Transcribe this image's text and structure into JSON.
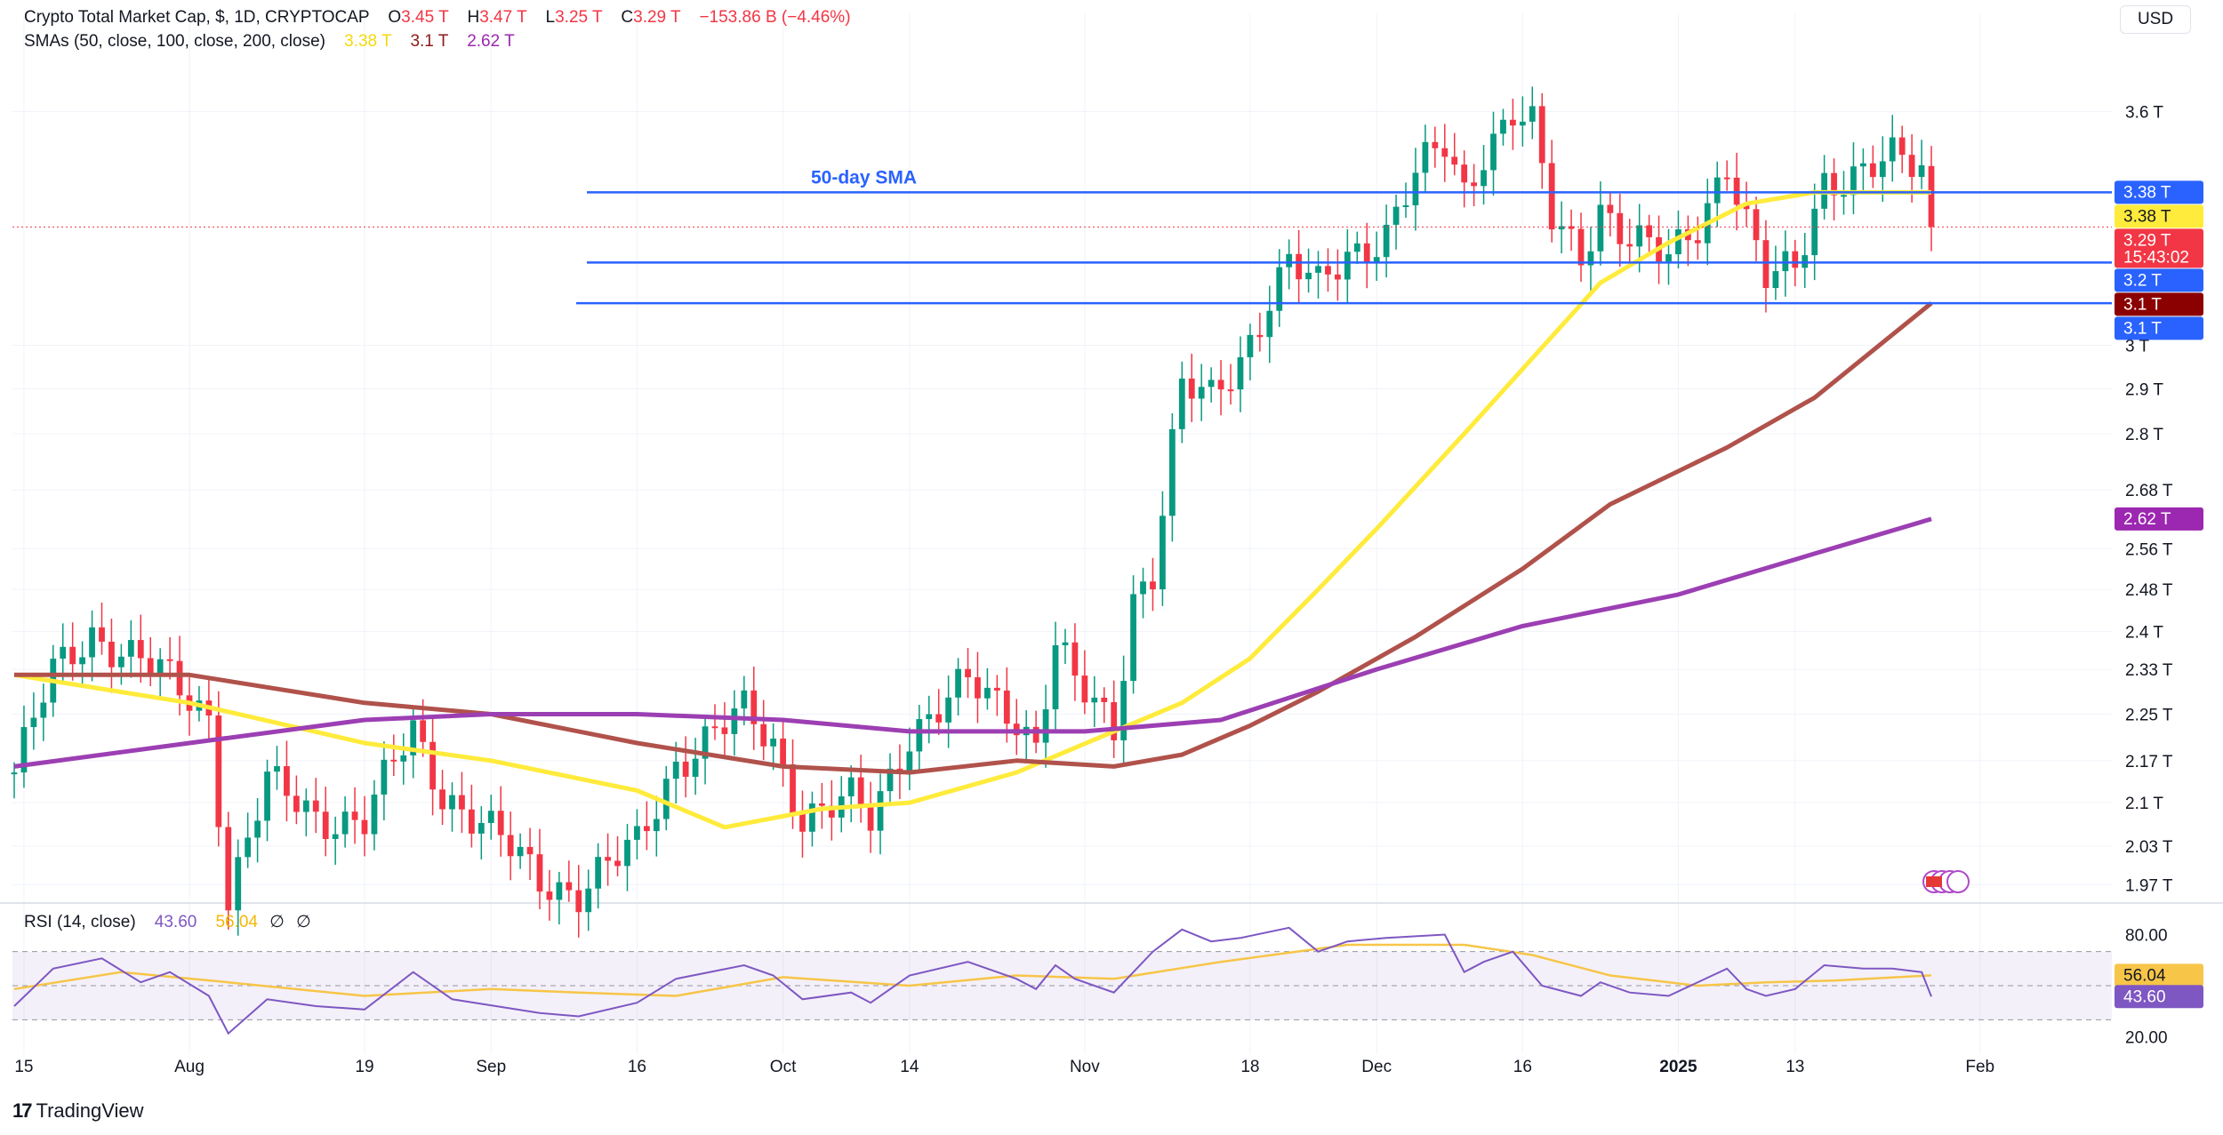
{
  "header": {
    "title": "Crypto Total Market Cap, $, 1D, CRYPTOCAP",
    "ohlc": [
      {
        "k": "O",
        "v": "3.45 T"
      },
      {
        "k": "H",
        "v": "3.47 T"
      },
      {
        "k": "L",
        "v": "3.25 T"
      },
      {
        "k": "C",
        "v": "3.29 T"
      }
    ],
    "change": "−153.86 B (−4.46%)",
    "sma_label": "SMAs (50, close, 100, close, 200, close)",
    "sma_values": [
      "3.38 T",
      "3.1 T",
      "2.62 T"
    ]
  },
  "currency_button": "USD",
  "watermark": "TradingView",
  "colors": {
    "up": "#089981",
    "down": "#f23645",
    "sma50": "#ffeb3b",
    "sma100": "#b0524b",
    "sma200": "#9c3fb3",
    "hline": "#2962ff",
    "rsi": "#7e57c2",
    "rsi_ma": "#f7c548"
  },
  "chart_data": [
    {
      "type": "candlestick",
      "title": "Crypto Total Market Cap, $, 1D, CRYPTOCAP",
      "y_scale": "log",
      "ylim": [
        1.95,
        3.78
      ],
      "y_ticks": [
        "3.6 T",
        "3 T",
        "2.9 T",
        "2.8 T",
        "2.68 T",
        "2.56 T",
        "2.48 T",
        "2.4 T",
        "2.33 T",
        "2.25 T",
        "2.17 T",
        "2.1 T",
        "2.03 T",
        "1.97 T"
      ],
      "x_ticks": [
        "15",
        "Aug",
        "19",
        "Sep",
        "16",
        "Oct",
        "14",
        "Nov",
        "18",
        "Dec",
        "16",
        "2025",
        "13",
        "Feb"
      ],
      "x_tick_dates": [
        "2024-07-15",
        "2024-08-01",
        "2024-08-19",
        "2024-09-01",
        "2024-09-16",
        "2024-10-01",
        "2024-10-14",
        "2024-11-01",
        "2024-11-18",
        "2024-12-01",
        "2024-12-16",
        "2025-01-01",
        "2025-01-13",
        "2025-02-01"
      ],
      "date_range": [
        "2024-07-14",
        "2025-01-27"
      ],
      "candle_close_path": [
        [
          "2024-07-14",
          2.15
        ],
        [
          "2024-07-18",
          2.32
        ],
        [
          "2024-07-22",
          2.4
        ],
        [
          "2024-07-29",
          2.32
        ],
        [
          "2024-08-03",
          2.25
        ],
        [
          "2024-08-05",
          1.95
        ],
        [
          "2024-08-09",
          2.13
        ],
        [
          "2024-08-14",
          2.08
        ],
        [
          "2024-08-19",
          2.07
        ],
        [
          "2024-08-24",
          2.22
        ],
        [
          "2024-08-27",
          2.12
        ],
        [
          "2024-09-06",
          1.98
        ],
        [
          "2024-09-10",
          1.96
        ],
        [
          "2024-09-16",
          2.03
        ],
        [
          "2024-09-20",
          2.17
        ],
        [
          "2024-09-27",
          2.25
        ],
        [
          "2024-09-30",
          2.2
        ],
        [
          "2024-10-03",
          2.08
        ],
        [
          "2024-10-08",
          2.1
        ],
        [
          "2024-10-10",
          2.07
        ],
        [
          "2024-10-14",
          2.22
        ],
        [
          "2024-10-20",
          2.3
        ],
        [
          "2024-10-25",
          2.25
        ],
        [
          "2024-10-27",
          2.2
        ],
        [
          "2024-10-29",
          2.38
        ],
        [
          "2024-10-31",
          2.3
        ],
        [
          "2024-11-04",
          2.22
        ],
        [
          "2024-11-06",
          2.47
        ],
        [
          "2024-11-08",
          2.52
        ],
        [
          "2024-11-11",
          2.9
        ],
        [
          "2024-11-14",
          2.87
        ],
        [
          "2024-11-17",
          2.97
        ],
        [
          "2024-11-20",
          3.12
        ],
        [
          "2024-11-22",
          3.2
        ],
        [
          "2024-11-25",
          3.13
        ],
        [
          "2024-11-28",
          3.22
        ],
        [
          "2024-12-02",
          3.28
        ],
        [
          "2024-12-05",
          3.42
        ],
        [
          "2024-12-08",
          3.5
        ],
        [
          "2024-12-10",
          3.38
        ],
        [
          "2024-12-12",
          3.5
        ],
        [
          "2024-12-15",
          3.6
        ],
        [
          "2024-12-17",
          3.55
        ],
        [
          "2024-12-19",
          3.3
        ],
        [
          "2024-12-22",
          3.22
        ],
        [
          "2024-12-24",
          3.35
        ],
        [
          "2024-12-27",
          3.26
        ],
        [
          "2024-12-31",
          3.2
        ],
        [
          "2025-01-03",
          3.3
        ],
        [
          "2025-01-06",
          3.47
        ],
        [
          "2025-01-08",
          3.3
        ],
        [
          "2025-01-10",
          3.15
        ],
        [
          "2025-01-13",
          3.18
        ],
        [
          "2025-01-16",
          3.42
        ],
        [
          "2025-01-20",
          3.43
        ],
        [
          "2025-01-23",
          3.46
        ],
        [
          "2025-01-26",
          3.45
        ],
        [
          "2025-01-27",
          3.29
        ]
      ],
      "series": [
        {
          "name": "SMA 50",
          "last": 3.38,
          "values": [
            [
              "2024-07-14",
              2.32
            ],
            [
              "2024-08-01",
              2.27
            ],
            [
              "2024-08-19",
              2.2
            ],
            [
              "2024-09-01",
              2.17
            ],
            [
              "2024-09-16",
              2.12
            ],
            [
              "2024-09-25",
              2.06
            ],
            [
              "2024-10-05",
              2.09
            ],
            [
              "2024-10-14",
              2.1
            ],
            [
              "2024-10-25",
              2.15
            ],
            [
              "2024-11-04",
              2.22
            ],
            [
              "2024-11-11",
              2.27
            ],
            [
              "2024-11-18",
              2.35
            ],
            [
              "2024-11-25",
              2.48
            ],
            [
              "2024-12-01",
              2.6
            ],
            [
              "2024-12-10",
              2.8
            ],
            [
              "2024-12-17",
              2.97
            ],
            [
              "2024-12-24",
              3.15
            ],
            [
              "2024-12-31",
              3.25
            ],
            [
              "2025-01-08",
              3.35
            ],
            [
              "2025-01-15",
              3.38
            ],
            [
              "2025-01-27",
              3.38
            ]
          ]
        },
        {
          "name": "SMA 100",
          "last": 3.1,
          "values": [
            [
              "2024-07-14",
              2.32
            ],
            [
              "2024-08-01",
              2.32
            ],
            [
              "2024-08-19",
              2.27
            ],
            [
              "2024-09-01",
              2.25
            ],
            [
              "2024-09-16",
              2.2
            ],
            [
              "2024-10-01",
              2.16
            ],
            [
              "2024-10-14",
              2.15
            ],
            [
              "2024-10-25",
              2.17
            ],
            [
              "2024-11-04",
              2.16
            ],
            [
              "2024-11-11",
              2.18
            ],
            [
              "2024-11-18",
              2.23
            ],
            [
              "2024-11-25",
              2.29
            ],
            [
              "2024-12-05",
              2.39
            ],
            [
              "2024-12-16",
              2.52
            ],
            [
              "2024-12-25",
              2.65
            ],
            [
              "2025-01-06",
              2.77
            ],
            [
              "2025-01-15",
              2.88
            ],
            [
              "2025-01-27",
              3.1
            ]
          ]
        },
        {
          "name": "SMA 200",
          "last": 2.62,
          "values": [
            [
              "2024-07-14",
              2.16
            ],
            [
              "2024-08-01",
              2.2
            ],
            [
              "2024-08-19",
              2.24
            ],
            [
              "2024-09-01",
              2.25
            ],
            [
              "2024-09-16",
              2.25
            ],
            [
              "2024-10-01",
              2.24
            ],
            [
              "2024-10-14",
              2.22
            ],
            [
              "2024-11-01",
              2.22
            ],
            [
              "2024-11-15",
              2.24
            ],
            [
              "2024-12-01",
              2.33
            ],
            [
              "2024-12-16",
              2.41
            ],
            [
              "2025-01-01",
              2.47
            ],
            [
              "2025-01-15",
              2.55
            ],
            [
              "2025-01-27",
              2.62
            ]
          ]
        }
      ],
      "annotations": [
        {
          "text": "50-day SMA"
        }
      ],
      "horizontal_lines": [
        3.38,
        3.2,
        3.1
      ],
      "price_labels": [
        {
          "text": "3.38 T",
          "value": 3.38,
          "bg": "#2962ff",
          "fg": "#ffffff"
        },
        {
          "text": "3.38 T",
          "value": 3.38,
          "bg": "#ffeb3b",
          "fg": "#131722"
        },
        {
          "text": "3.29 T",
          "sub": "15:43:02",
          "value": 3.29,
          "bg": "#f23645",
          "fg": "#ffffff"
        },
        {
          "text": "3.2 T",
          "value": 3.2,
          "bg": "#2962ff",
          "fg": "#ffffff"
        },
        {
          "text": "3.1 T",
          "value": 3.1,
          "bg": "#8b0000",
          "fg": "#ffffff"
        },
        {
          "text": "3.1 T",
          "value": 3.1,
          "bg": "#2962ff",
          "fg": "#ffffff"
        },
        {
          "text": "2.62 T",
          "value": 2.62,
          "bg": "#9c27b0",
          "fg": "#ffffff"
        }
      ]
    },
    {
      "type": "line",
      "title": "RSI (14, close)",
      "header_values": [
        "43.60",
        "56.04"
      ],
      "ylim": [
        14,
        86
      ],
      "y_ticks": [
        "80.00",
        "20.00"
      ],
      "bands": [
        70,
        50,
        30
      ],
      "series": [
        {
          "name": "RSI",
          "last": 43.6,
          "values": [
            [
              "2024-07-14",
              38
            ],
            [
              "2024-07-18",
              60
            ],
            [
              "2024-07-23",
              66
            ],
            [
              "2024-07-27",
              52
            ],
            [
              "2024-07-30",
              58
            ],
            [
              "2024-08-03",
              44
            ],
            [
              "2024-08-05",
              22
            ],
            [
              "2024-08-09",
              42
            ],
            [
              "2024-08-14",
              38
            ],
            [
              "2024-08-19",
              36
            ],
            [
              "2024-08-24",
              58
            ],
            [
              "2024-08-28",
              42
            ],
            [
              "2024-09-06",
              34
            ],
            [
              "2024-09-10",
              32
            ],
            [
              "2024-09-16",
              40
            ],
            [
              "2024-09-20",
              54
            ],
            [
              "2024-09-27",
              62
            ],
            [
              "2024-09-30",
              56
            ],
            [
              "2024-10-03",
              42
            ],
            [
              "2024-10-08",
              46
            ],
            [
              "2024-10-10",
              40
            ],
            [
              "2024-10-14",
              56
            ],
            [
              "2024-10-20",
              64
            ],
            [
              "2024-10-25",
              54
            ],
            [
              "2024-10-27",
              48
            ],
            [
              "2024-10-29",
              62
            ],
            [
              "2024-10-31",
              54
            ],
            [
              "2024-11-04",
              46
            ],
            [
              "2024-11-08",
              70
            ],
            [
              "2024-11-11",
              83
            ],
            [
              "2024-11-14",
              76
            ],
            [
              "2024-11-17",
              78
            ],
            [
              "2024-11-22",
              84
            ],
            [
              "2024-11-25",
              70
            ],
            [
              "2024-11-28",
              76
            ],
            [
              "2024-12-02",
              78
            ],
            [
              "2024-12-08",
              80
            ],
            [
              "2024-12-10",
              58
            ],
            [
              "2024-12-12",
              64
            ],
            [
              "2024-12-15",
              70
            ],
            [
              "2024-12-18",
              50
            ],
            [
              "2024-12-22",
              44
            ],
            [
              "2024-12-24",
              52
            ],
            [
              "2024-12-27",
              46
            ],
            [
              "2024-12-31",
              44
            ],
            [
              "2025-01-06",
              60
            ],
            [
              "2025-01-08",
              48
            ],
            [
              "2025-01-10",
              44
            ],
            [
              "2025-01-13",
              48
            ],
            [
              "2025-01-16",
              62
            ],
            [
              "2025-01-20",
              60
            ],
            [
              "2025-01-23",
              60
            ],
            [
              "2025-01-26",
              58
            ],
            [
              "2025-01-27",
              43.6
            ]
          ]
        },
        {
          "name": "RSI-based MA",
          "last": 56.04,
          "values": [
            [
              "2024-07-14",
              48
            ],
            [
              "2024-07-25",
              58
            ],
            [
              "2024-08-05",
              52
            ],
            [
              "2024-08-19",
              44
            ],
            [
              "2024-09-01",
              48
            ],
            [
              "2024-09-10",
              46
            ],
            [
              "2024-09-20",
              44
            ],
            [
              "2024-10-01",
              55
            ],
            [
              "2024-10-14",
              50
            ],
            [
              "2024-10-25",
              56
            ],
            [
              "2024-11-04",
              54
            ],
            [
              "2024-11-15",
              64
            ],
            [
              "2024-11-28",
              74
            ],
            [
              "2024-12-10",
              74
            ],
            [
              "2024-12-17",
              68
            ],
            [
              "2024-12-25",
              56
            ],
            [
              "2025-01-03",
              50
            ],
            [
              "2025-01-10",
              52
            ],
            [
              "2025-01-17",
              53
            ],
            [
              "2025-01-27",
              56.04
            ]
          ]
        }
      ]
    }
  ]
}
